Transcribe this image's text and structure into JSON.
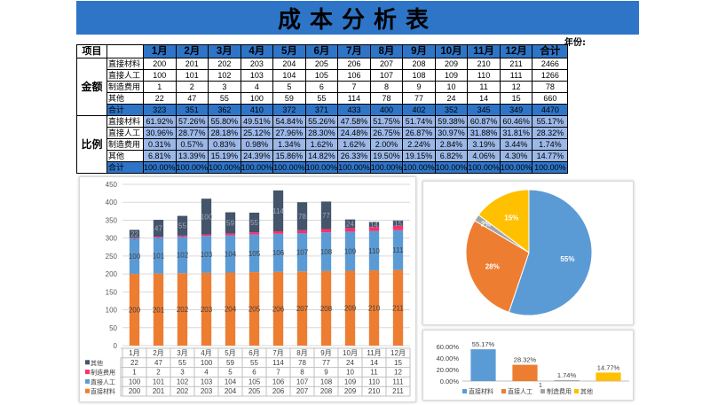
{
  "title": "成本分析表",
  "year_label": "年份:",
  "header": {
    "item": "项目",
    "months": [
      "1月",
      "2月",
      "3月",
      "4月",
      "5月",
      "6月",
      "7月",
      "8月",
      "9月",
      "10月",
      "11月",
      "12月"
    ],
    "total": "合计"
  },
  "amount": {
    "group": "金额",
    "rows": [
      {
        "label": "直接材料",
        "values": [
          "200",
          "201",
          "202",
          "203",
          "204",
          "205",
          "206",
          "207",
          "208",
          "209",
          "210",
          "211"
        ],
        "total": "2466"
      },
      {
        "label": "直接人工",
        "values": [
          "100",
          "101",
          "102",
          "103",
          "104",
          "105",
          "106",
          "107",
          "108",
          "109",
          "110",
          "111"
        ],
        "total": "1266"
      },
      {
        "label": "制造费用",
        "values": [
          "1",
          "2",
          "3",
          "4",
          "5",
          "6",
          "7",
          "8",
          "9",
          "10",
          "11",
          "12"
        ],
        "total": "78"
      },
      {
        "label": "其他",
        "values": [
          "22",
          "47",
          "55",
          "100",
          "59",
          "55",
          "114",
          "78",
          "77",
          "24",
          "14",
          "15"
        ],
        "total": "660"
      }
    ],
    "sum": {
      "label": "合计",
      "values": [
        "323",
        "351",
        "362",
        "410",
        "372",
        "371",
        "433",
        "400",
        "402",
        "352",
        "345",
        "349"
      ],
      "total": "4470"
    }
  },
  "ratio": {
    "group": "比例",
    "rows": [
      {
        "label": "直接材料",
        "values": [
          "61.92%",
          "57.26%",
          "55.80%",
          "49.51%",
          "54.84%",
          "55.26%",
          "47.58%",
          "51.75%",
          "51.74%",
          "59.38%",
          "60.87%",
          "60.46%"
        ],
        "total": "55.17%"
      },
      {
        "label": "直接人工",
        "values": [
          "30.96%",
          "28.77%",
          "28.18%",
          "25.12%",
          "27.96%",
          "28.30%",
          "24.48%",
          "26.75%",
          "26.87%",
          "30.97%",
          "31.88%",
          "31.81%"
        ],
        "total": "28.32%"
      },
      {
        "label": "制造费用",
        "values": [
          "0.31%",
          "0.57%",
          "0.83%",
          "0.98%",
          "1.34%",
          "1.62%",
          "1.62%",
          "2.00%",
          "2.24%",
          "2.84%",
          "3.19%",
          "3.44%"
        ],
        "total": "1.74%"
      },
      {
        "label": "其他",
        "values": [
          "6.81%",
          "13.39%",
          "15.19%",
          "24.39%",
          "15.86%",
          "14.82%",
          "26.33%",
          "19.50%",
          "19.15%",
          "6.82%",
          "4.06%",
          "4.30%"
        ],
        "total": "14.77%"
      }
    ],
    "sum": {
      "label": "合计",
      "values": [
        "100.00%",
        "100.00%",
        "100.00%",
        "100.00%",
        "100.00%",
        "100.00%",
        "100.00%",
        "100.00%",
        "100.00%",
        "100.00%",
        "100.00%",
        "100.00%"
      ],
      "total": "100.00%"
    }
  },
  "colors": {
    "material": "#ed7d31",
    "labor": "#5b9bd5",
    "overhead": "#ff2f6e",
    "other": "#44546a",
    "banner": "#2e75c8",
    "ratio_fill": "#9cb8e8",
    "pie_material": "#5b9bd5",
    "pie_labor": "#ed7d31",
    "pie_overhead": "#a5a5a5",
    "pie_other": "#ffc000"
  },
  "chart_data": [
    {
      "type": "bar",
      "stacked": true,
      "categories": [
        "1月",
        "2月",
        "3月",
        "4月",
        "5月",
        "6月",
        "7月",
        "8月",
        "9月",
        "10月",
        "11月",
        "12月"
      ],
      "series": [
        {
          "name": "直接材料",
          "values": [
            200,
            201,
            202,
            203,
            204,
            205,
            206,
            207,
            208,
            209,
            210,
            211
          ]
        },
        {
          "name": "直接人工",
          "values": [
            100,
            101,
            102,
            103,
            104,
            105,
            106,
            107,
            108,
            109,
            110,
            111
          ]
        },
        {
          "name": "制造费用",
          "values": [
            1,
            2,
            3,
            4,
            5,
            6,
            7,
            8,
            9,
            10,
            11,
            12
          ]
        },
        {
          "name": "其他",
          "values": [
            22,
            47,
            55,
            100,
            59,
            55,
            114,
            78,
            77,
            24,
            14,
            15
          ]
        }
      ],
      "ylim": [
        0,
        450
      ],
      "yticks": [
        0,
        50,
        100,
        150,
        200,
        250,
        300,
        350,
        400,
        450
      ],
      "grid": true,
      "legend": "data table below"
    },
    {
      "type": "pie",
      "labels": [
        "直接材料",
        "直接人工",
        "制造费用",
        "其他"
      ],
      "values": [
        55.17,
        28.32,
        1.74,
        14.77
      ],
      "data_labels": [
        "55%",
        "28%",
        "2%",
        "15%"
      ]
    },
    {
      "type": "bar",
      "categories": [
        "直接材料",
        "直接人工",
        "制造费用",
        "其他"
      ],
      "values": [
        55.17,
        28.32,
        1.74,
        14.77
      ],
      "data_labels": [
        "55.17%",
        "28.32%",
        "1.74%",
        "14.77%"
      ],
      "yticks": [
        "0.00%",
        "20.00%",
        "40.00%",
        "60.00%"
      ],
      "ylim": [
        0,
        60
      ],
      "legend": "bottom"
    }
  ],
  "small_chart_note": "1"
}
